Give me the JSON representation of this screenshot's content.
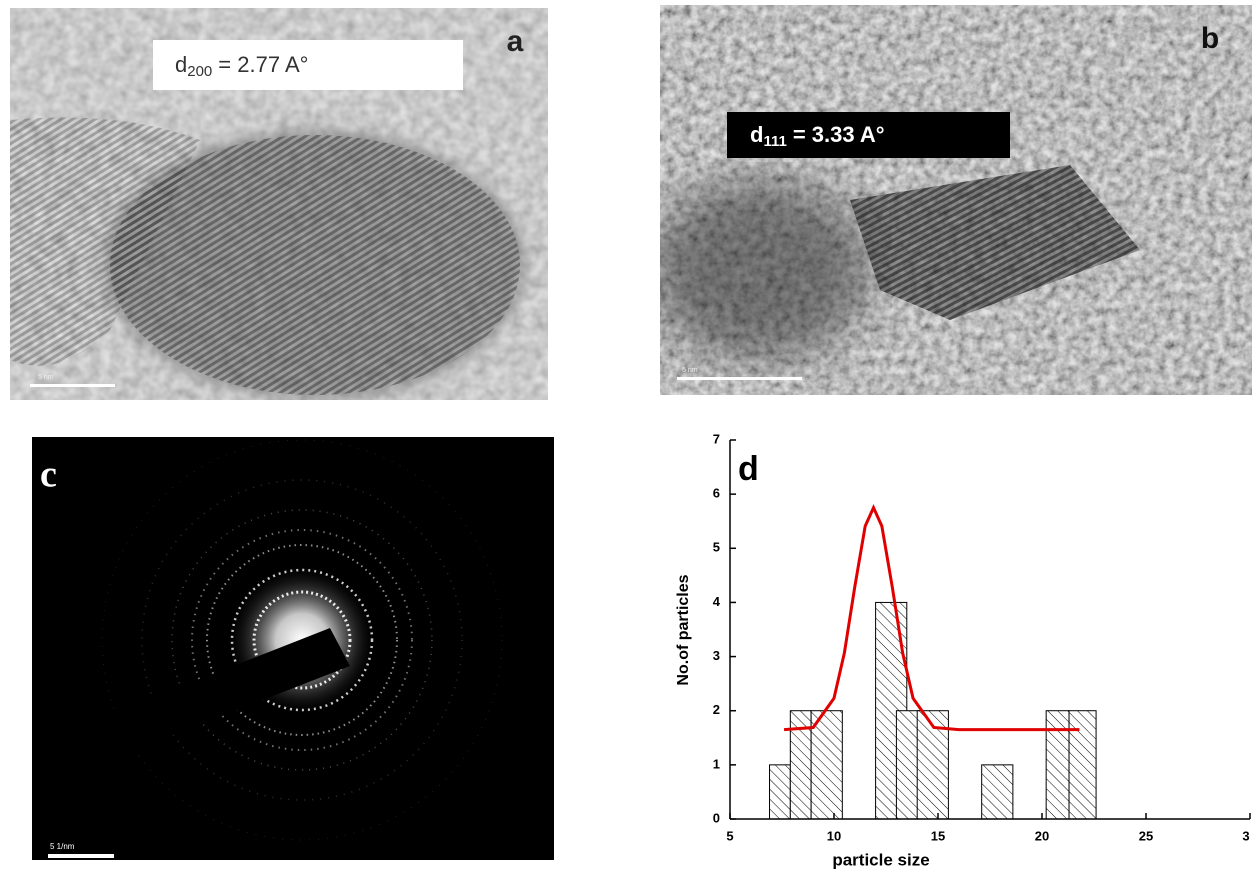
{
  "panels": [
    {
      "label": "a",
      "annotation": {
        "symbol": "d",
        "subscript": "200",
        "text": "= 2.77 A°"
      },
      "scale_bar": "5 nm"
    },
    {
      "label": "b",
      "annotation": {
        "symbol": "d",
        "subscript": "111",
        "text": "= 3.33 A°"
      },
      "scale_bar": "5 nm"
    },
    {
      "label": "c",
      "scale_bar": "5 1/nm"
    }
  ],
  "chart_data": {
    "type": "bar",
    "panel_label": "d",
    "x_label": "particle size",
    "y_label": "No.of particles",
    "x0": [
      6.9,
      7.9,
      8.9,
      12.0,
      13.0,
      14.0,
      17.1,
      20.2,
      21.3
    ],
    "x1": [
      7.9,
      8.9,
      10.4,
      13.5,
      14.1,
      15.5,
      18.6,
      21.3,
      22.6
    ],
    "values": [
      1,
      2,
      2,
      4,
      2,
      2,
      1,
      2,
      2
    ],
    "color": "#000000",
    "fit": {
      "color": "#e00000",
      "x": [
        7.6,
        9,
        10,
        10.5,
        11,
        11.5,
        11.9,
        12.3,
        12.8,
        13.3,
        13.8,
        14.8,
        16,
        21.8
      ],
      "y": [
        1.65,
        1.69,
        2.23,
        3.07,
        4.29,
        5.41,
        5.75,
        5.41,
        4.29,
        3.07,
        2.23,
        1.69,
        1.65,
        1.65
      ]
    },
    "xlim": [
      5,
      30
    ],
    "xticks": [
      5,
      10,
      15,
      20,
      25,
      {
        "value": 30,
        "label": "3"
      }
    ],
    "ylim": [
      0,
      7
    ],
    "yticks": [
      0,
      1,
      2,
      3,
      4,
      5,
      6,
      7
    ]
  }
}
